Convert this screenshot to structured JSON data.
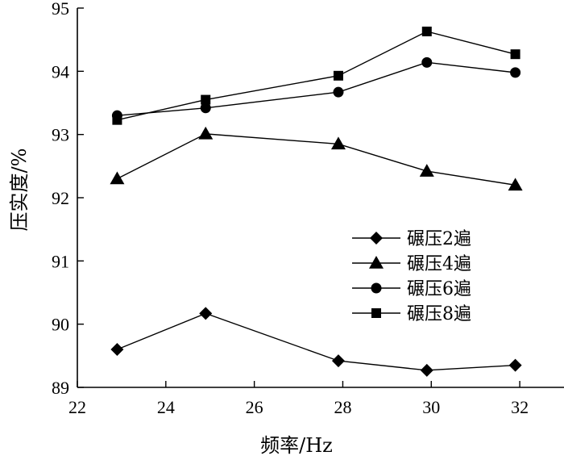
{
  "chart_data": {
    "type": "line",
    "xlabel": "频率/Hz",
    "ylabel": "压实度/%",
    "xlim": [
      22,
      33
    ],
    "ylim": [
      89,
      95
    ],
    "x_ticks": [
      22,
      24,
      26,
      28,
      30,
      32
    ],
    "y_ticks": [
      89,
      90,
      91,
      92,
      93,
      94,
      95
    ],
    "grid": false,
    "legend_position": "center-right",
    "series": [
      {
        "name": "碾压2遍",
        "marker": "diamond",
        "points": [
          [
            22.9,
            89.6
          ],
          [
            24.9,
            90.17
          ],
          [
            27.9,
            89.42
          ],
          [
            29.9,
            89.27
          ],
          [
            31.9,
            89.35
          ]
        ]
      },
      {
        "name": "碾压4遍",
        "marker": "triangle",
        "points": [
          [
            22.9,
            92.3
          ],
          [
            24.9,
            93.01
          ],
          [
            27.9,
            92.85
          ],
          [
            29.9,
            92.42
          ],
          [
            31.9,
            92.2
          ]
        ]
      },
      {
        "name": "碾压6遍",
        "marker": "circle",
        "points": [
          [
            22.9,
            93.3
          ],
          [
            24.9,
            93.42
          ],
          [
            27.9,
            93.67
          ],
          [
            29.9,
            94.14
          ],
          [
            31.9,
            93.98
          ]
        ]
      },
      {
        "name": "碾压8遍",
        "marker": "square",
        "points": [
          [
            22.9,
            93.23
          ],
          [
            24.9,
            93.55
          ],
          [
            27.9,
            93.93
          ],
          [
            29.9,
            94.63
          ],
          [
            31.9,
            94.27
          ]
        ]
      }
    ]
  }
}
